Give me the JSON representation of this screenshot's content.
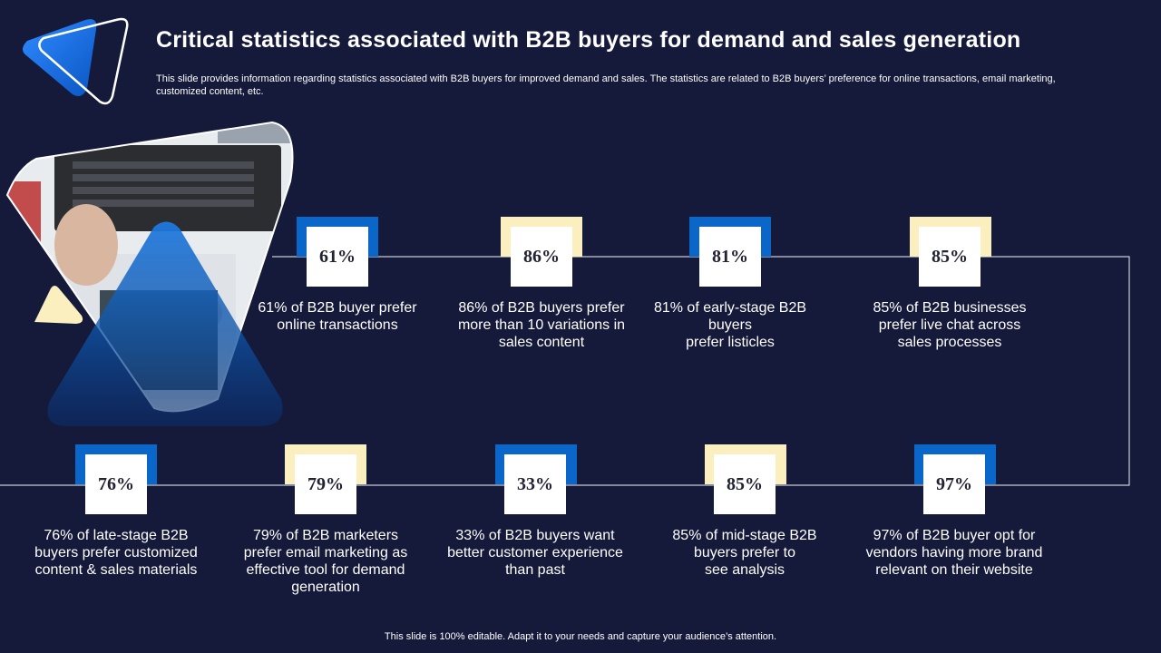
{
  "header": {
    "title": "Critical statistics associated with B2B buyers for demand and sales generation",
    "subtitle": "This slide provides information regarding statistics associated with B2B buyers for improved demand and sales. The statistics are related to B2B buyers’ preference for online transactions, email marketing, customized content, etc."
  },
  "colors": {
    "background": "#15193a",
    "accent_blue": "#0a66c8",
    "accent_cream": "#fbefc0",
    "box": "#ffffff"
  },
  "stats_top": [
    {
      "value": "61%",
      "lines": [
        "61% of B2B buyer prefer",
        "online transactions"
      ],
      "tab": "blue"
    },
    {
      "value": "86%",
      "lines": [
        "86% of B2B buyers prefer",
        "more than 10 variations in",
        "sales content"
      ],
      "tab": "cream"
    },
    {
      "value": "81%",
      "lines": [
        "81% of early-stage B2B",
        "buyers",
        "prefer listicles"
      ],
      "tab": "blue"
    },
    {
      "value": "85%",
      "lines": [
        "85% of B2B businesses",
        "prefer live chat across",
        "sales processes"
      ],
      "tab": "cream"
    }
  ],
  "stats_bottom": [
    {
      "value": "76%",
      "lines": [
        "76% of late-stage B2B",
        "buyers prefer customized",
        "content & sales materials"
      ],
      "tab": "blue"
    },
    {
      "value": "79%",
      "lines": [
        "79% of B2B marketers",
        "prefer email marketing as",
        "effective tool for demand",
        "generation"
      ],
      "tab": "cream"
    },
    {
      "value": "33%",
      "lines": [
        "33% of B2B buyers want",
        "better customer experience",
        "than past"
      ],
      "tab": "blue"
    },
    {
      "value": "85%",
      "lines": [
        "85% of mid-stage B2B",
        "buyers prefer to",
        "see analysis"
      ],
      "tab": "cream"
    },
    {
      "value": "97%",
      "lines": [
        "97% of B2B buyer opt for",
        "vendors having more brand",
        "relevant on their website"
      ],
      "tab": "blue"
    }
  ],
  "footer": {
    "note": "This slide is 100% editable. Adapt it to your needs and capture your audience’s attention."
  }
}
